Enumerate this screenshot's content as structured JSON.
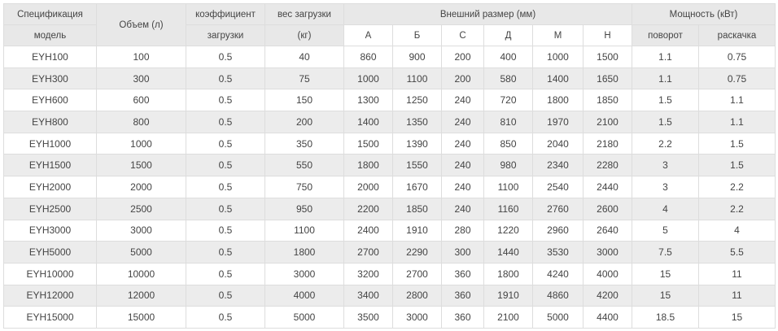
{
  "header": {
    "spec": "Спецификация",
    "model": "модель",
    "volume": "Объем (л)",
    "coef_top": "коэффициент",
    "coef_bottom": "загрузки",
    "weight_top": "вес загрузки",
    "weight_bottom": "(кг)",
    "dims": "Внешний размер (мм)",
    "dim_cols": [
      "А",
      "Б",
      "С",
      "Д",
      "М",
      "Н"
    ],
    "power": "Мощность (кВт)",
    "power_cols": [
      "поворот",
      "раскачка"
    ]
  },
  "rows": [
    [
      "EYH100",
      "100",
      "0.5",
      "40",
      "860",
      "900",
      "200",
      "400",
      "1000",
      "1500",
      "1.1",
      "0.75"
    ],
    [
      "EYH300",
      "300",
      "0.5",
      "75",
      "1000",
      "1100",
      "200",
      "580",
      "1400",
      "1650",
      "1.1",
      "0.75"
    ],
    [
      "EYH600",
      "600",
      "0.5",
      "150",
      "1300",
      "1250",
      "240",
      "720",
      "1800",
      "1850",
      "1.5",
      "1.1"
    ],
    [
      "EYH800",
      "800",
      "0.5",
      "200",
      "1400",
      "1350",
      "240",
      "810",
      "1970",
      "2100",
      "1.5",
      "1.1"
    ],
    [
      "EYH1000",
      "1000",
      "0.5",
      "350",
      "1500",
      "1390",
      "240",
      "850",
      "2040",
      "2180",
      "2.2",
      "1.5"
    ],
    [
      "EYH1500",
      "1500",
      "0.5",
      "550",
      "1800",
      "1550",
      "240",
      "980",
      "2340",
      "2280",
      "3",
      "1.5"
    ],
    [
      "EYH2000",
      "2000",
      "0.5",
      "750",
      "2000",
      "1670",
      "240",
      "1100",
      "2540",
      "2440",
      "3",
      "2.2"
    ],
    [
      "EYH2500",
      "2500",
      "0.5",
      "950",
      "2200",
      "1850",
      "240",
      "1160",
      "2760",
      "2600",
      "4",
      "2.2"
    ],
    [
      "EYH3000",
      "3000",
      "0.5",
      "1100",
      "2400",
      "1910",
      "280",
      "1220",
      "2960",
      "2640",
      "5",
      "4"
    ],
    [
      "EYH5000",
      "5000",
      "0.5",
      "1800",
      "2700",
      "2290",
      "300",
      "1440",
      "3530",
      "3000",
      "7.5",
      "5.5"
    ],
    [
      "EYH10000",
      "10000",
      "0.5",
      "3000",
      "3200",
      "2700",
      "360",
      "1800",
      "4240",
      "4000",
      "15",
      "11"
    ],
    [
      "EYH12000",
      "12000",
      "0.5",
      "4000",
      "3400",
      "2800",
      "360",
      "1910",
      "4860",
      "4200",
      "15",
      "11"
    ],
    [
      "EYH15000",
      "15000",
      "0.5",
      "5000",
      "3500",
      "3000",
      "360",
      "2100",
      "5000",
      "4400",
      "18.5",
      "15"
    ]
  ]
}
